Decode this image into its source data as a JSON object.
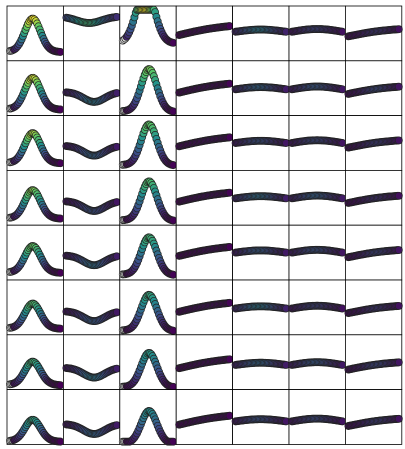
{
  "chart_data": {
    "type": "scatter",
    "layout": {
      "rows": 8,
      "cols": 7
    },
    "axes": {
      "ticks": "none",
      "grid": false,
      "legend": "none",
      "colormap": "viridis",
      "marker_edge_color": "#222222",
      "unfilled_marker_color": "#d9d9d9"
    },
    "row_levels": [
      0.03,
      -0.02,
      0.0,
      -0.01,
      0.0,
      -0.02,
      -0.05,
      -0.08
    ],
    "column_shapes": [
      {
        "shape": "bump",
        "start": 0.14,
        "amp": 0.3,
        "peak": 0.45,
        "width": 0.22,
        "colour_scale": 1.0
      },
      {
        "shape": "dip",
        "start": 0.45,
        "amp": 0.18,
        "peak": 0.55,
        "width": 0.3,
        "colour_scale": 0.45
      },
      {
        "shape": "bump",
        "start": 0.1,
        "amp": 0.4,
        "peak": 0.52,
        "width": 0.22,
        "colour_scale": 0.85
      },
      {
        "shape": "rise",
        "start": 0.52,
        "amp": 0.1,
        "peak": 0.6,
        "width": 0.3,
        "colour_scale": 0.05
      },
      {
        "shape": "flat",
        "start": 0.5,
        "amp": 0.04,
        "peak": 0.5,
        "width": 0.35,
        "colour_scale": 0.45
      },
      {
        "shape": "flat",
        "start": 0.5,
        "amp": 0.05,
        "peak": 0.5,
        "width": 0.35,
        "colour_scale": 0.35
      },
      {
        "shape": "rise",
        "start": 0.48,
        "amp": 0.08,
        "peak": 0.6,
        "width": 0.3,
        "colour_scale": 0.25
      }
    ],
    "overrides": [
      {
        "row": 0,
        "col": 1,
        "shape": "dip",
        "start": 0.78,
        "amp": 0.12,
        "peak": 0.45,
        "width": 0.35,
        "colour_scale": 1.0
      },
      {
        "row": 0,
        "col": 2,
        "shape": "bump",
        "start": 0.3,
        "amp": 0.5,
        "peak": 0.45,
        "width": 0.25,
        "colour_scale": 1.0
      }
    ],
    "series_points": 40
  }
}
